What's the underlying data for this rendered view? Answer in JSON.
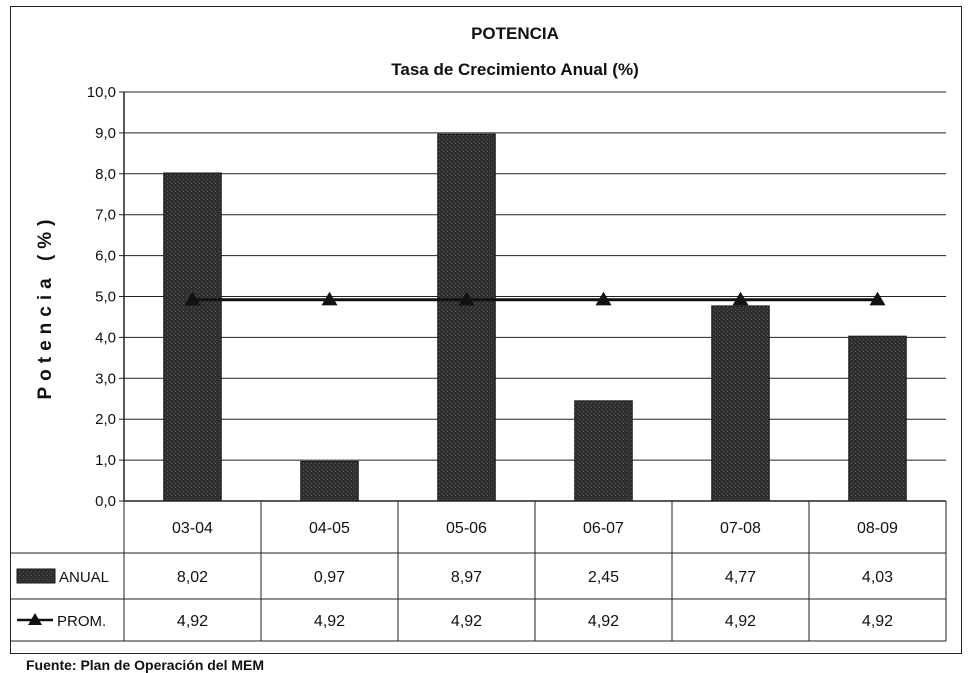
{
  "chart_data": {
    "type": "bar",
    "title": "POTENCIA",
    "subtitle": "Tasa de Crecimiento Anual (%)",
    "ylabel": "Potencia (%)",
    "xlabel": "",
    "ylim": [
      0,
      10
    ],
    "yticks": [
      "0,0",
      "1,0",
      "2,0",
      "3,0",
      "4,0",
      "5,0",
      "6,0",
      "7,0",
      "8,0",
      "9,0",
      "10,0"
    ],
    "grid": true,
    "categories": [
      "03-04",
      "04-05",
      "05-06",
      "06-07",
      "07-08",
      "08-09"
    ],
    "series": [
      {
        "name": "ANUAL",
        "kind": "bar",
        "values": [
          8.02,
          0.97,
          8.97,
          2.45,
          4.77,
          4.03
        ],
        "labels": [
          "8,02",
          "0,97",
          "8,97",
          "2,45",
          "4,77",
          "4,03"
        ],
        "color": "#2b2b2b"
      },
      {
        "name": "PROM.",
        "kind": "line",
        "marker": "triangle",
        "values": [
          4.92,
          4.92,
          4.92,
          4.92,
          4.92,
          4.92
        ],
        "labels": [
          "4,92",
          "4,92",
          "4,92",
          "4,92",
          "4,92",
          "4,92"
        ],
        "color": "#111111"
      }
    ],
    "legend": "data-table-left"
  },
  "footer": {
    "source": "Fuente: Plan de Operación del MEM"
  }
}
